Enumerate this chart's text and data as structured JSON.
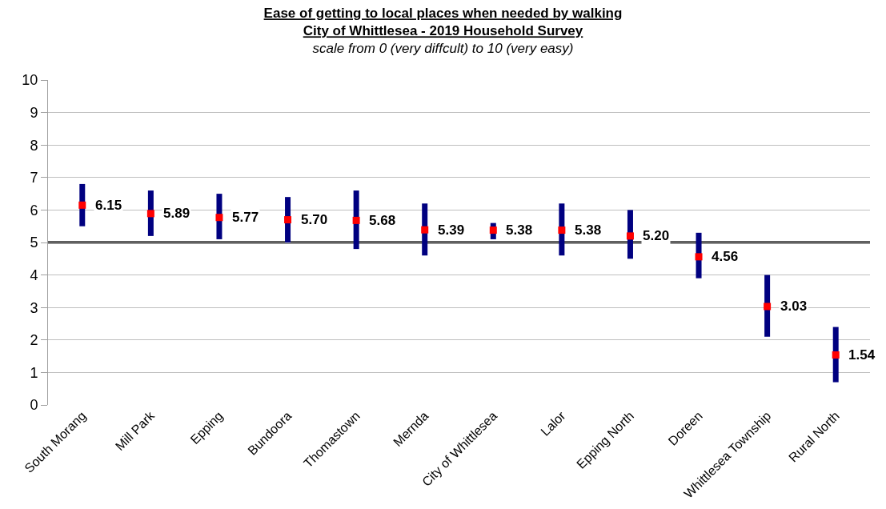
{
  "chart_data": {
    "type": "scatter",
    "title": "Ease of getting to local places when needed by walking\nCity of Whittlesea - 2019 Household Survey",
    "subtitle": "scale from 0 (very diffcult) to 10 (very easy)",
    "categories": [
      "South Morang",
      "Mill Park",
      "Epping",
      "Bundoora",
      "Thomastown",
      "Mernda",
      "City of Whittlesea",
      "Lalor",
      "Epping North",
      "Doreen",
      "Whittlesea Township",
      "Rural North"
    ],
    "series": [
      {
        "color": "#ff0000",
        "values": [
          6.15,
          5.89,
          5.77,
          5.7,
          5.68,
          5.39,
          5.38,
          5.38,
          5.2,
          4.56,
          3.03,
          1.54
        ],
        "value_labels": [
          "6.15",
          "5.89",
          "5.77",
          "5.70",
          "5.68",
          "5.39",
          "5.38",
          "5.38",
          "5.20",
          "4.56",
          "3.03",
          "1.54"
        ],
        "errors": [
          [
            5.5,
            6.8
          ],
          [
            5.2,
            6.6
          ],
          [
            5.1,
            6.5
          ],
          [
            5.0,
            6.4
          ],
          [
            4.8,
            6.6
          ],
          [
            4.6,
            6.2
          ],
          [
            5.1,
            5.6
          ],
          [
            4.6,
            6.2
          ],
          [
            4.5,
            6.0
          ],
          [
            3.9,
            5.3
          ],
          [
            2.1,
            4.0
          ],
          [
            0.7,
            2.4
          ]
        ]
      }
    ],
    "ylim": [
      0,
      10
    ],
    "yticks": [
      0,
      1,
      2,
      3,
      4,
      5,
      6,
      7,
      8,
      9,
      10
    ],
    "ref_lines": [
      {
        "axis": "y",
        "value": 5,
        "color": "#000000"
      }
    ],
    "grid": "y",
    "marker": "square"
  }
}
